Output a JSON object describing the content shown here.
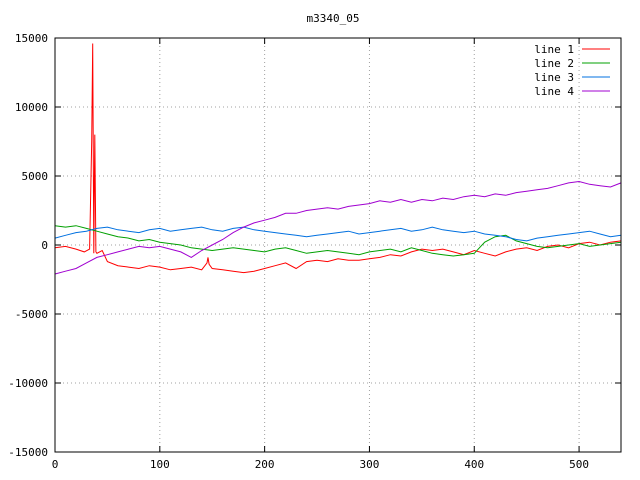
{
  "chart_data": {
    "type": "line",
    "title": "m3340_05",
    "xlabel": "",
    "ylabel": "",
    "xlim": [
      0,
      540
    ],
    "ylim": [
      -15000,
      15000
    ],
    "x_ticks": [
      0,
      100,
      200,
      300,
      400,
      500
    ],
    "y_ticks": [
      -15000,
      -10000,
      -5000,
      0,
      5000,
      10000,
      15000
    ],
    "grid": true,
    "legend_position": "top-right",
    "series": [
      {
        "name": "line 1",
        "color": "#ff0000",
        "points": [
          [
            0,
            -200
          ],
          [
            10,
            -100
          ],
          [
            20,
            -300
          ],
          [
            28,
            -500
          ],
          [
            33,
            -300
          ],
          [
            35,
            7500
          ],
          [
            36,
            14600
          ],
          [
            37,
            -600
          ],
          [
            38,
            8000
          ],
          [
            39,
            -500
          ],
          [
            40,
            -600
          ],
          [
            45,
            -400
          ],
          [
            50,
            -1200
          ],
          [
            60,
            -1500
          ],
          [
            70,
            -1600
          ],
          [
            80,
            -1700
          ],
          [
            90,
            -1500
          ],
          [
            100,
            -1600
          ],
          [
            110,
            -1800
          ],
          [
            120,
            -1700
          ],
          [
            130,
            -1600
          ],
          [
            140,
            -1800
          ],
          [
            145,
            -1300
          ],
          [
            146,
            -900
          ],
          [
            147,
            -1400
          ],
          [
            150,
            -1700
          ],
          [
            160,
            -1800
          ],
          [
            170,
            -1900
          ],
          [
            180,
            -2000
          ],
          [
            190,
            -1900
          ],
          [
            200,
            -1700
          ],
          [
            210,
            -1500
          ],
          [
            220,
            -1300
          ],
          [
            230,
            -1700
          ],
          [
            240,
            -1200
          ],
          [
            250,
            -1100
          ],
          [
            260,
            -1200
          ],
          [
            270,
            -1000
          ],
          [
            280,
            -1100
          ],
          [
            290,
            -1100
          ],
          [
            300,
            -1000
          ],
          [
            310,
            -900
          ],
          [
            320,
            -700
          ],
          [
            330,
            -800
          ],
          [
            340,
            -500
          ],
          [
            350,
            -300
          ],
          [
            360,
            -400
          ],
          [
            370,
            -300
          ],
          [
            380,
            -500
          ],
          [
            390,
            -700
          ],
          [
            400,
            -400
          ],
          [
            410,
            -600
          ],
          [
            420,
            -800
          ],
          [
            430,
            -500
          ],
          [
            440,
            -300
          ],
          [
            450,
            -200
          ],
          [
            460,
            -400
          ],
          [
            470,
            -100
          ],
          [
            480,
            0
          ],
          [
            490,
            -200
          ],
          [
            500,
            100
          ],
          [
            510,
            200
          ],
          [
            520,
            0
          ],
          [
            530,
            200
          ],
          [
            540,
            300
          ]
        ]
      },
      {
        "name": "line 2",
        "color": "#00a000",
        "points": [
          [
            0,
            1400
          ],
          [
            10,
            1300
          ],
          [
            20,
            1400
          ],
          [
            30,
            1200
          ],
          [
            40,
            1000
          ],
          [
            50,
            800
          ],
          [
            60,
            600
          ],
          [
            70,
            500
          ],
          [
            80,
            300
          ],
          [
            90,
            400
          ],
          [
            100,
            200
          ],
          [
            110,
            100
          ],
          [
            120,
            0
          ],
          [
            130,
            -200
          ],
          [
            140,
            -300
          ],
          [
            150,
            -400
          ],
          [
            160,
            -300
          ],
          [
            170,
            -200
          ],
          [
            180,
            -300
          ],
          [
            190,
            -400
          ],
          [
            200,
            -500
          ],
          [
            210,
            -300
          ],
          [
            220,
            -200
          ],
          [
            230,
            -400
          ],
          [
            240,
            -600
          ],
          [
            250,
            -500
          ],
          [
            260,
            -400
          ],
          [
            270,
            -500
          ],
          [
            280,
            -600
          ],
          [
            290,
            -700
          ],
          [
            300,
            -500
          ],
          [
            310,
            -400
          ],
          [
            320,
            -300
          ],
          [
            330,
            -500
          ],
          [
            340,
            -200
          ],
          [
            350,
            -400
          ],
          [
            360,
            -600
          ],
          [
            370,
            -700
          ],
          [
            380,
            -800
          ],
          [
            390,
            -700
          ],
          [
            400,
            -600
          ],
          [
            410,
            200
          ],
          [
            420,
            600
          ],
          [
            430,
            700
          ],
          [
            440,
            300
          ],
          [
            450,
            100
          ],
          [
            460,
            -100
          ],
          [
            470,
            -200
          ],
          [
            480,
            -100
          ],
          [
            490,
            0
          ],
          [
            500,
            100
          ],
          [
            510,
            -100
          ],
          [
            520,
            0
          ],
          [
            530,
            100
          ],
          [
            540,
            200
          ]
        ]
      },
      {
        "name": "line 3",
        "color": "#0070e0",
        "points": [
          [
            0,
            500
          ],
          [
            10,
            700
          ],
          [
            20,
            900
          ],
          [
            30,
            1000
          ],
          [
            40,
            1200
          ],
          [
            50,
            1300
          ],
          [
            60,
            1100
          ],
          [
            70,
            1000
          ],
          [
            80,
            900
          ],
          [
            90,
            1100
          ],
          [
            100,
            1200
          ],
          [
            110,
            1000
          ],
          [
            120,
            1100
          ],
          [
            130,
            1200
          ],
          [
            140,
            1300
          ],
          [
            150,
            1100
          ],
          [
            160,
            1000
          ],
          [
            170,
            1200
          ],
          [
            180,
            1300
          ],
          [
            190,
            1100
          ],
          [
            200,
            1000
          ],
          [
            210,
            900
          ],
          [
            220,
            800
          ],
          [
            230,
            700
          ],
          [
            240,
            600
          ],
          [
            250,
            700
          ],
          [
            260,
            800
          ],
          [
            270,
            900
          ],
          [
            280,
            1000
          ],
          [
            290,
            800
          ],
          [
            300,
            900
          ],
          [
            310,
            1000
          ],
          [
            320,
            1100
          ],
          [
            330,
            1200
          ],
          [
            340,
            1000
          ],
          [
            350,
            1100
          ],
          [
            360,
            1300
          ],
          [
            370,
            1100
          ],
          [
            380,
            1000
          ],
          [
            390,
            900
          ],
          [
            400,
            1000
          ],
          [
            410,
            800
          ],
          [
            420,
            700
          ],
          [
            430,
            600
          ],
          [
            440,
            400
          ],
          [
            450,
            300
          ],
          [
            460,
            500
          ],
          [
            470,
            600
          ],
          [
            480,
            700
          ],
          [
            490,
            800
          ],
          [
            500,
            900
          ],
          [
            510,
            1000
          ],
          [
            520,
            800
          ],
          [
            530,
            600
          ],
          [
            540,
            700
          ]
        ]
      },
      {
        "name": "line 4",
        "color": "#a000d0",
        "points": [
          [
            0,
            -2100
          ],
          [
            10,
            -1900
          ],
          [
            20,
            -1700
          ],
          [
            30,
            -1300
          ],
          [
            40,
            -900
          ],
          [
            50,
            -700
          ],
          [
            60,
            -500
          ],
          [
            70,
            -300
          ],
          [
            80,
            -100
          ],
          [
            90,
            -200
          ],
          [
            100,
            -100
          ],
          [
            110,
            -300
          ],
          [
            120,
            -500
          ],
          [
            130,
            -900
          ],
          [
            140,
            -400
          ],
          [
            150,
            0
          ],
          [
            160,
            400
          ],
          [
            170,
            900
          ],
          [
            180,
            1300
          ],
          [
            190,
            1600
          ],
          [
            200,
            1800
          ],
          [
            210,
            2000
          ],
          [
            220,
            2300
          ],
          [
            230,
            2300
          ],
          [
            240,
            2500
          ],
          [
            250,
            2600
          ],
          [
            260,
            2700
          ],
          [
            270,
            2600
          ],
          [
            280,
            2800
          ],
          [
            290,
            2900
          ],
          [
            300,
            3000
          ],
          [
            310,
            3200
          ],
          [
            320,
            3100
          ],
          [
            330,
            3300
          ],
          [
            340,
            3100
          ],
          [
            350,
            3300
          ],
          [
            360,
            3200
          ],
          [
            370,
            3400
          ],
          [
            380,
            3300
          ],
          [
            390,
            3500
          ],
          [
            400,
            3600
          ],
          [
            410,
            3500
          ],
          [
            420,
            3700
          ],
          [
            430,
            3600
          ],
          [
            440,
            3800
          ],
          [
            450,
            3900
          ],
          [
            460,
            4000
          ],
          [
            470,
            4100
          ],
          [
            480,
            4300
          ],
          [
            490,
            4500
          ],
          [
            500,
            4600
          ],
          [
            510,
            4400
          ],
          [
            520,
            4300
          ],
          [
            530,
            4200
          ],
          [
            540,
            4500
          ]
        ]
      }
    ]
  }
}
